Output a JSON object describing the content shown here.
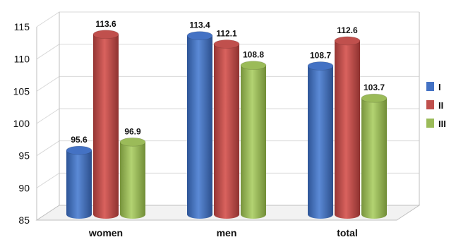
{
  "chart_data": {
    "type": "bar",
    "categories": [
      "women",
      "men",
      "total"
    ],
    "series": [
      {
        "name": "I",
        "color": "#4472c4",
        "values": [
          95.6,
          113.4,
          108.7
        ]
      },
      {
        "name": "II",
        "color": "#c0504d",
        "values": [
          113.6,
          112.1,
          112.6
        ]
      },
      {
        "name": "III",
        "color": "#9bbb59",
        "values": [
          96.9,
          108.8,
          103.7
        ]
      }
    ],
    "y_ticks": [
      "85",
      "90",
      "95",
      "100",
      "105",
      "110",
      "115"
    ],
    "ylim": [
      85,
      115
    ],
    "grid": true,
    "legend_position": "right",
    "title": "",
    "xlabel": "",
    "ylabel": ""
  }
}
